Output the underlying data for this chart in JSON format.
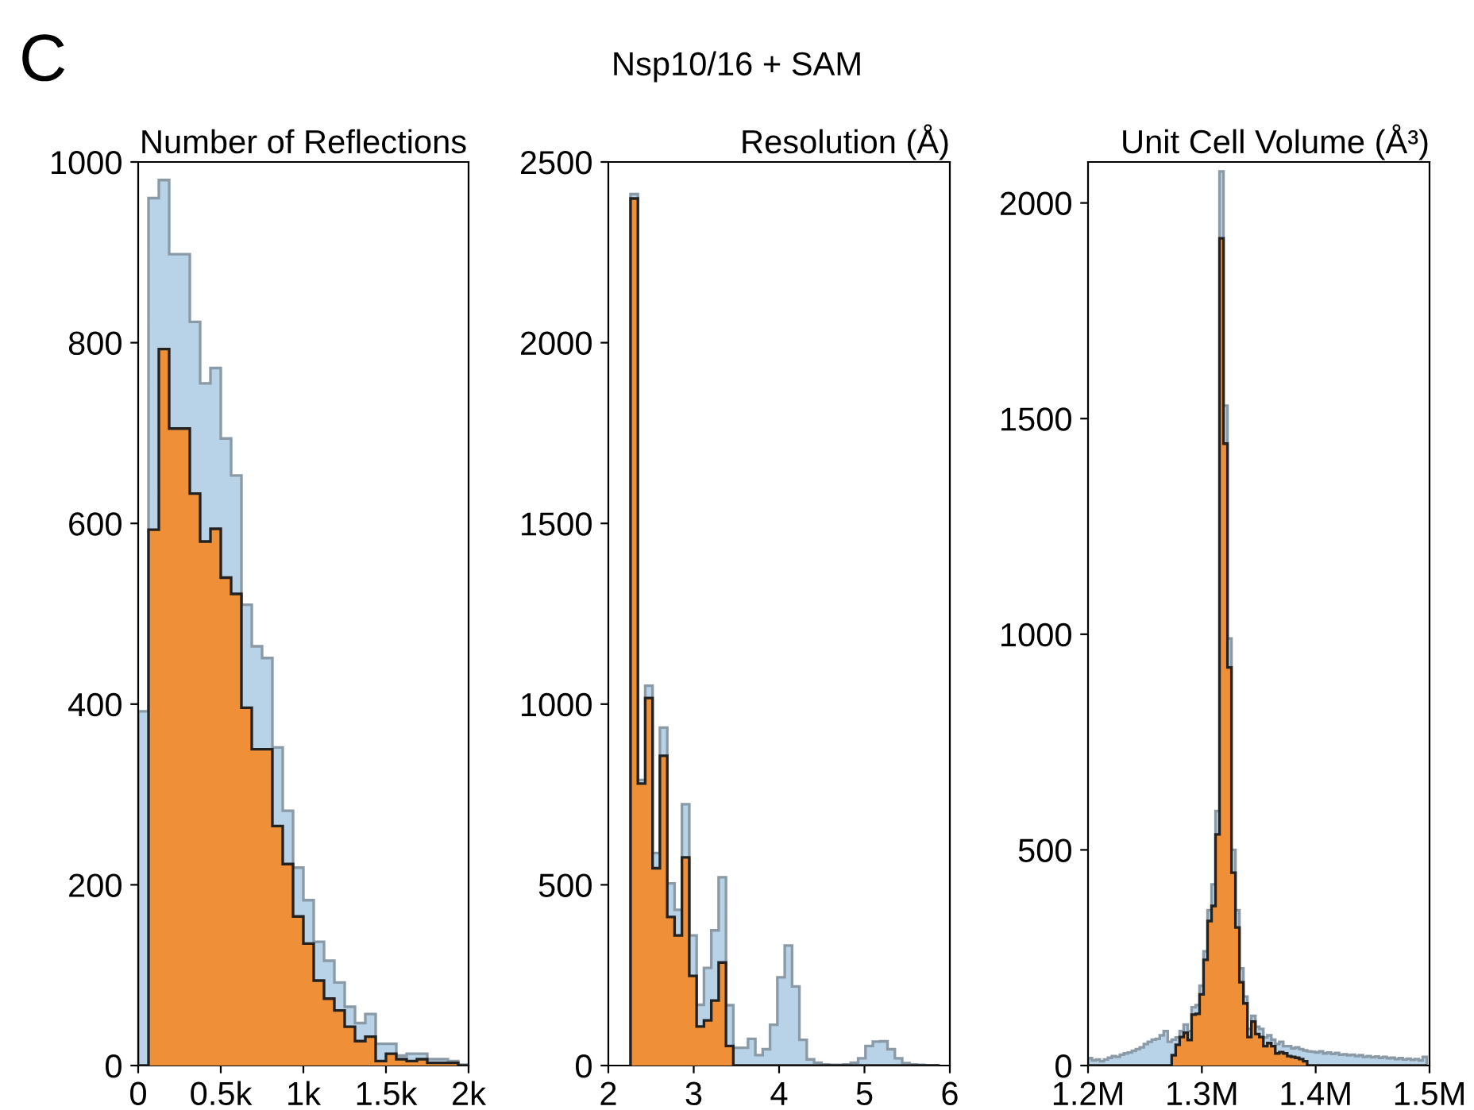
{
  "chart_data": [
    {
      "type": "histogram",
      "title": "Number of Reflections",
      "annotations": [
        "C",
        "Nsp10/16 + SAM"
      ],
      "bins": [
        0,
        62.5,
        125,
        187.5,
        250,
        312.5,
        375,
        437.5,
        500,
        562.5,
        625,
        687.5,
        750,
        812.5,
        875,
        937.5,
        1000,
        1062.5,
        1125,
        1187.5,
        1250,
        1312.5,
        1375,
        1437.5,
        1500,
        1562.5,
        1625,
        1687.5,
        1750,
        1812.5,
        1875,
        1937.5,
        2000
      ],
      "series": [
        {
          "color": "#b8d3e8",
          "values": [
            392,
            960,
            980,
            898,
            898,
            823,
            755,
            772,
            694,
            653,
            510,
            464,
            451,
            352,
            282,
            219,
            183,
            137,
            116,
            92,
            65,
            47,
            57,
            24,
            24,
            11,
            13,
            13,
            7,
            7,
            5,
            1
          ]
        },
        {
          "color": "#ef9038",
          "values": [
            0,
            593,
            793,
            705,
            705,
            633,
            580,
            594,
            540,
            522,
            396,
            350,
            350,
            265,
            223,
            165,
            135,
            94,
            74,
            61,
            43,
            27,
            32,
            5,
            13,
            7,
            5,
            7,
            3,
            3,
            3,
            0
          ]
        }
      ],
      "xlim": [
        0,
        2000
      ],
      "ylim": [
        0,
        1000
      ],
      "xticks": [
        0,
        {
          "value": 500,
          "label": "0.5k"
        },
        {
          "value": 1000,
          "label": "1k"
        },
        {
          "value": 1500,
          "label": "1.5k"
        },
        {
          "value": 2000,
          "label": "2k"
        }
      ],
      "yticks": [
        0,
        200,
        400,
        600,
        800,
        1000
      ],
      "grid": false,
      "legend": false
    },
    {
      "type": "histogram",
      "title": "Resolution (Å)",
      "bins": [
        2.26,
        2.346,
        2.432,
        2.518,
        2.604,
        2.69,
        2.776,
        2.862,
        2.948,
        3.034,
        3.12,
        3.206,
        3.292,
        3.378,
        3.464,
        3.55,
        3.636,
        3.722,
        3.808,
        3.894,
        3.98,
        4.066,
        4.152,
        4.238,
        4.324,
        4.41,
        4.496,
        4.582,
        4.668,
        4.754,
        4.84,
        4.926,
        5.012,
        5.098,
        5.184,
        5.27,
        5.356,
        5.442,
        5.528,
        5.614,
        5.7,
        5.786,
        5.872
      ],
      "series": [
        {
          "color": "#b8d3e8",
          "values": [
            2411,
            790,
            1051,
            588,
            935,
            504,
            431,
            723,
            360,
            168,
            270,
            374,
            521,
            167,
            49,
            49,
            74,
            29,
            45,
            113,
            244,
            332,
            219,
            71,
            17,
            8,
            3,
            2,
            2,
            3,
            8,
            20,
            54,
            66,
            67,
            45,
            20,
            7,
            3,
            2,
            1,
            1
          ]
        },
        {
          "color": "#ef9038",
          "values": [
            2399,
            780,
            1017,
            546,
            857,
            411,
            360,
            576,
            248,
            108,
            125,
            180,
            285,
            54,
            0,
            0,
            0,
            0,
            0,
            0,
            0,
            0,
            0,
            0,
            0,
            0,
            0,
            0,
            0,
            0,
            0,
            0,
            0,
            0,
            0,
            0,
            0,
            0,
            0,
            0,
            0,
            0
          ]
        }
      ],
      "xlim": [
        2,
        6
      ],
      "ylim": [
        0,
        2500
      ],
      "xticks": [
        2,
        3,
        4,
        5,
        6
      ],
      "yticks": [
        0,
        500,
        1000,
        1500,
        2000,
        2500
      ],
      "grid": false,
      "legend": false
    },
    {
      "type": "histogram",
      "title": "Unit Cell Volume (Å³)",
      "bins": [
        1200000,
        1203500,
        1207000,
        1210500,
        1214000,
        1217500,
        1221000,
        1224500,
        1228000,
        1231500,
        1235000,
        1238500,
        1242000,
        1245500,
        1249000,
        1252500,
        1256000,
        1259500,
        1263000,
        1266500,
        1270000,
        1273500,
        1277000,
        1280500,
        1284000,
        1287500,
        1291000,
        1294500,
        1298000,
        1301500,
        1305000,
        1308500,
        1312000,
        1315500,
        1319000,
        1322500,
        1326000,
        1329500,
        1333000,
        1336500,
        1340000,
        1343500,
        1347000,
        1350500,
        1354000,
        1357500,
        1361000,
        1364500,
        1368000,
        1371500,
        1375000,
        1378500,
        1382000,
        1385500,
        1389000,
        1392500,
        1396000,
        1399500,
        1403000,
        1406500,
        1410000,
        1413500,
        1417000,
        1420500,
        1424000,
        1427500,
        1431000,
        1434500,
        1438000,
        1441500,
        1445000,
        1448500,
        1452000,
        1455500,
        1459000,
        1462500,
        1466000,
        1469500,
        1473000,
        1476500,
        1480000,
        1483500,
        1487000,
        1490500,
        1494000,
        1497500
      ],
      "series": [
        {
          "color": "#b8d3e8",
          "values": [
            17,
            12,
            14,
            10,
            14,
            18,
            22,
            20,
            25,
            28,
            30,
            34,
            38,
            42,
            50,
            55,
            60,
            62,
            70,
            80,
            55,
            60,
            65,
            80,
            95,
            80,
            135,
            140,
            185,
            265,
            360,
            420,
            590,
            2073,
            1530,
            990,
            500,
            360,
            225,
            160,
            85,
            115,
            90,
            85,
            65,
            70,
            60,
            50,
            55,
            45,
            45,
            40,
            42,
            38,
            35,
            33,
            32,
            30,
            33,
            28,
            30,
            27,
            29,
            25,
            26,
            24,
            25,
            22,
            24,
            20,
            22,
            19,
            21,
            18,
            20,
            17,
            18,
            15,
            17,
            14,
            16,
            13,
            15,
            12,
            20
          ]
        },
        {
          "color": "#ef9038",
          "values": [
            0,
            0,
            0,
            0,
            0,
            0,
            0,
            0,
            0,
            0,
            0,
            0,
            0,
            0,
            0,
            0,
            0,
            0,
            0,
            0,
            0,
            24,
            48,
            66,
            76,
            59,
            118,
            120,
            165,
            245,
            335,
            370,
            536,
            1918,
            1442,
            923,
            447,
            320,
            193,
            144,
            66,
            102,
            73,
            66,
            45,
            52,
            45,
            28,
            31,
            28,
            22,
            20,
            18,
            15,
            10,
            0,
            0,
            0,
            0,
            0,
            0,
            0,
            0,
            0,
            0,
            0,
            0,
            0,
            0,
            0,
            0,
            0,
            0,
            0,
            0,
            0,
            0,
            0,
            0,
            0,
            0,
            0,
            0,
            0,
            0
          ]
        }
      ],
      "xlim": [
        1200000,
        1500000
      ],
      "ylim": [
        0,
        2095
      ],
      "xticks": [
        {
          "value": 1200000,
          "label": "1.2M"
        },
        {
          "value": 1300000,
          "label": "1.3M"
        },
        {
          "value": 1400000,
          "label": "1.4M"
        },
        {
          "value": 1500000,
          "label": "1.5M"
        }
      ],
      "yticks": [
        0,
        500,
        1000,
        1500,
        2000
      ],
      "grid": false,
      "legend": false
    }
  ]
}
